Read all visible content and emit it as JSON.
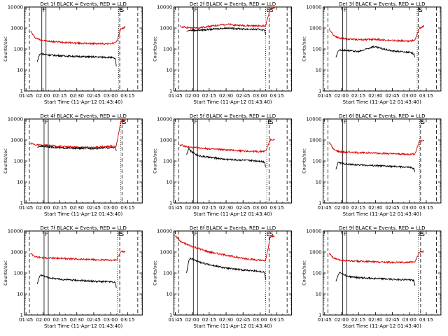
{
  "figure": {
    "background": "#ffffff",
    "axis_color": "#000000",
    "events_color": "#000000",
    "lld_color": "#dd0000"
  },
  "chart_data": [
    {
      "type": "line",
      "title": "Det 1f BLACK = Events, RED = LLD",
      "xlabel": "Start Time (11-Apr-12 01:43:40)",
      "ylabel": "Counts/sec",
      "xlim": [
        "01:43:40",
        "03:28:00"
      ],
      "ylim": [
        1,
        10000
      ],
      "yscale": "log",
      "x_ticks": [
        "01:45",
        "02:00",
        "02:15",
        "02:30",
        "02:45",
        "03:00",
        "03:15"
      ],
      "y_ticks": [
        "1",
        "10",
        "100",
        "1000",
        "10000"
      ],
      "markers": [
        {
          "label": "E",
          "time": "03:07:00",
          "style": "dotted"
        },
        {
          "label": "F",
          "time": "01:59:00",
          "style": "solid"
        },
        {
          "label": "S",
          "time": "03:08:00",
          "style": "dashed"
        }
      ],
      "extra_lines": [
        {
          "time": "01:48:00",
          "style": "dashed"
        },
        {
          "time": "03:24:00",
          "style": "dashed"
        }
      ],
      "series": [
        {
          "color": "#dd0000",
          "x": [
            "01:49:00",
            "01:53:00",
            "01:58:00",
            "02:05:00",
            "02:15:00",
            "02:30:00",
            "02:45:00",
            "03:00:00",
            "03:05:00",
            "03:09:00",
            "03:13:00"
          ],
          "y": [
            700,
            350,
            270,
            230,
            215,
            190,
            180,
            180,
            200,
            900,
            1100
          ]
        },
        {
          "color": "#000000",
          "x": [
            "01:55:00",
            "01:57:00",
            "01:58:30",
            "02:05:00",
            "02:15:00",
            "02:30:00",
            "02:45:00",
            "03:00:00",
            "03:04:00",
            "03:05:00"
          ],
          "y": [
            25,
            55,
            60,
            52,
            48,
            44,
            42,
            40,
            35,
            15
          ]
        }
      ]
    },
    {
      "type": "line",
      "title": "Det 2f BLACK = Events, RED = LLD",
      "xlabel": "Start Time (11-Apr-12 01:43:40)",
      "ylabel": "Counts/sec",
      "xlim": [
        "01:43:40",
        "03:28:00"
      ],
      "ylim": [
        1,
        10000
      ],
      "yscale": "log",
      "x_ticks": [
        "01:45",
        "02:00",
        "02:15",
        "02:30",
        "02:45",
        "03:00",
        "03:15"
      ],
      "y_ticks": [
        "1",
        "10",
        "100",
        "1000",
        "10000"
      ],
      "markers": [
        {
          "label": "E",
          "time": "03:05:00",
          "style": "dotted"
        },
        {
          "label": "F",
          "time": "02:01:00",
          "style": "solid"
        },
        {
          "label": "S",
          "time": "03:08:00",
          "style": "dashed"
        }
      ],
      "extra_lines": [
        {
          "time": "01:48:00",
          "style": "dashed"
        },
        {
          "time": "03:24:00",
          "style": "dashed"
        }
      ],
      "series": [
        {
          "color": "#dd0000",
          "x": [
            "01:49:00",
            "01:53:00",
            "01:58:00",
            "02:05:00",
            "02:15:00",
            "02:30:00",
            "02:45:00",
            "03:00:00",
            "03:05:00",
            "03:09:00",
            "03:13:00"
          ],
          "y": [
            1200,
            1100,
            1000,
            1000,
            1200,
            1500,
            1300,
            1250,
            1250,
            8000,
            9000
          ]
        },
        {
          "color": "#000000",
          "x": [
            "01:55:00",
            "01:57:00",
            "01:58:30",
            "02:05:00",
            "02:15:00",
            "02:30:00",
            "02:45:00",
            "03:00:00",
            "03:04:00",
            "03:05:00"
          ],
          "y": [
            700,
            750,
            780,
            780,
            850,
            1000,
            900,
            850,
            800,
            500
          ]
        }
      ]
    },
    {
      "type": "line",
      "title": "Det 3f BLACK = Events, RED = LLD",
      "xlabel": "Start Time (11-Apr-12 01:43:40)",
      "ylabel": "Counts/sec",
      "xlim": [
        "01:43:40",
        "03:28:00"
      ],
      "ylim": [
        1,
        10000
      ],
      "yscale": "log",
      "x_ticks": [
        "01:45",
        "02:00",
        "02:15",
        "02:30",
        "02:45",
        "03:00",
        "03:15"
      ],
      "y_ticks": [
        "1",
        "10",
        "100",
        "1000",
        "10000"
      ],
      "markers": [
        {
          "label": "E",
          "time": "03:07:00",
          "style": "dotted"
        },
        {
          "label": "F",
          "time": "02:01:00",
          "style": "solid"
        },
        {
          "label": "S",
          "time": "03:08:00",
          "style": "dashed"
        }
      ],
      "extra_lines": [
        {
          "time": "01:48:00",
          "style": "dashed"
        },
        {
          "time": "03:24:00",
          "style": "dashed"
        }
      ],
      "series": [
        {
          "color": "#dd0000",
          "x": [
            "01:49:00",
            "01:53:00",
            "01:58:00",
            "02:05:00",
            "02:15:00",
            "02:30:00",
            "02:45:00",
            "03:00:00",
            "03:05:00",
            "03:09:00",
            "03:13:00"
          ],
          "y": [
            900,
            450,
            330,
            300,
            280,
            290,
            250,
            240,
            260,
            1000,
            1200
          ]
        },
        {
          "color": "#000000",
          "x": [
            "01:55:00",
            "01:57:00",
            "01:58:30",
            "02:05:00",
            "02:15:00",
            "02:20:00",
            "02:28:00",
            "02:45:00",
            "03:00:00",
            "03:04:00",
            "03:05:00"
          ],
          "y": [
            40,
            80,
            90,
            85,
            75,
            90,
            130,
            80,
            70,
            60,
            40
          ]
        }
      ]
    },
    {
      "type": "line",
      "title": "Det 4f BLACK = Events, RED = LLD",
      "xlabel": "Start Time (11-Apr-12 01:43:40)",
      "ylabel": "Counts/sec",
      "xlim": [
        "01:43:40",
        "03:28:00"
      ],
      "ylim": [
        1,
        10000
      ],
      "yscale": "log",
      "x_ticks": [
        "01:45",
        "02:00",
        "02:15",
        "02:30",
        "02:45",
        "03:00",
        "03:15"
      ],
      "y_ticks": [
        "1",
        "10",
        "100",
        "1000",
        "10000"
      ],
      "markers": [
        {
          "label": "E",
          "time": "03:09:00",
          "style": "dotted"
        },
        {
          "label": "F",
          "time": "02:01:00",
          "style": "solid"
        },
        {
          "label": "S",
          "time": "03:10:00",
          "style": "dashed"
        }
      ],
      "extra_lines": [
        {
          "time": "01:48:00",
          "style": "dashed"
        },
        {
          "time": "03:24:00",
          "style": "dashed"
        }
      ],
      "series": [
        {
          "color": "#dd0000",
          "x": [
            "01:49:00",
            "01:53:00",
            "01:58:00",
            "02:05:00",
            "02:15:00",
            "02:30:00",
            "02:45:00",
            "03:00:00",
            "03:05:00",
            "03:09:00",
            "03:13:00"
          ],
          "y": [
            700,
            600,
            550,
            550,
            500,
            450,
            450,
            500,
            520,
            8000,
            9000
          ]
        },
        {
          "color": "#000000",
          "x": [
            "01:55:00",
            "01:57:00",
            "01:58:30",
            "02:05:00",
            "02:15:00",
            "02:30:00",
            "02:45:00",
            "03:00:00",
            "03:04:00",
            "03:05:00"
          ],
          "y": [
            450,
            480,
            500,
            480,
            420,
            400,
            400,
            430,
            450,
            300
          ]
        }
      ]
    },
    {
      "type": "line",
      "title": "Det 5f BLACK = Events, RED = LLD",
      "xlabel": "Start Time (11-Apr-12 01:43:40)",
      "ylabel": "Counts/sec",
      "xlim": [
        "01:43:40",
        "03:28:00"
      ],
      "ylim": [
        1,
        10000
      ],
      "yscale": "log",
      "x_ticks": [
        "01:45",
        "02:00",
        "02:15",
        "02:30",
        "02:45",
        "03:00",
        "03:15"
      ],
      "y_ticks": [
        "1",
        "10",
        "100",
        "1000",
        "10000"
      ],
      "markers": [
        {
          "label": "E",
          "time": "03:06:00",
          "style": "dotted"
        },
        {
          "label": "F",
          "time": "02:01:00",
          "style": "solid"
        },
        {
          "label": "S",
          "time": "03:08:00",
          "style": "dashed"
        }
      ],
      "extra_lines": [
        {
          "time": "01:48:00",
          "style": "dashed"
        },
        {
          "time": "03:24:00",
          "style": "dashed"
        }
      ],
      "series": [
        {
          "color": "#dd0000",
          "x": [
            "01:49:00",
            "01:53:00",
            "01:58:00",
            "02:05:00",
            "02:15:00",
            "02:30:00",
            "02:45:00",
            "03:00:00",
            "03:05:00",
            "03:09:00",
            "03:13:00"
          ],
          "y": [
            600,
            500,
            450,
            420,
            380,
            340,
            300,
            280,
            300,
            1000,
            1100
          ]
        },
        {
          "color": "#000000",
          "x": [
            "01:55:00",
            "01:57:00",
            "01:58:30",
            "02:05:00",
            "02:15:00",
            "02:30:00",
            "02:45:00",
            "03:00:00",
            "03:04:00",
            "03:05:00"
          ],
          "y": [
            200,
            400,
            300,
            180,
            150,
            120,
            110,
            100,
            90,
            50
          ]
        }
      ]
    },
    {
      "type": "line",
      "title": "Det 6f BLACK = Events, RED = LLD",
      "xlabel": "Start Time (11-Apr-12 01:43:40)",
      "ylabel": "Counts/sec",
      "xlim": [
        "01:43:40",
        "03:28:00"
      ],
      "ylim": [
        1,
        10000
      ],
      "yscale": "log",
      "x_ticks": [
        "01:45",
        "02:00",
        "02:15",
        "02:30",
        "02:45",
        "03:00",
        "03:15"
      ],
      "y_ticks": [
        "1",
        "10",
        "100",
        "1000",
        "10000"
      ],
      "markers": [
        {
          "label": "E",
          "time": "03:09:00",
          "style": "dotted"
        },
        {
          "label": "F",
          "time": "02:01:00",
          "style": "solid"
        },
        {
          "label": "S",
          "time": "03:10:00",
          "style": "dashed"
        }
      ],
      "extra_lines": [
        {
          "time": "01:48:00",
          "style": "dashed"
        },
        {
          "time": "03:24:00",
          "style": "dashed"
        }
      ],
      "series": [
        {
          "color": "#dd0000",
          "x": [
            "01:49:00",
            "01:53:00",
            "01:58:00",
            "02:05:00",
            "02:15:00",
            "02:30:00",
            "02:45:00",
            "03:00:00",
            "03:05:00",
            "03:09:00",
            "03:13:00"
          ],
          "y": [
            800,
            350,
            280,
            260,
            250,
            240,
            220,
            210,
            220,
            900,
            1000
          ]
        },
        {
          "color": "#000000",
          "x": [
            "01:55:00",
            "01:57:00",
            "01:58:30",
            "02:05:00",
            "02:15:00",
            "02:30:00",
            "02:45:00",
            "03:00:00",
            "03:04:00",
            "03:05:00"
          ],
          "y": [
            40,
            90,
            80,
            70,
            65,
            60,
            55,
            50,
            45,
            30
          ]
        }
      ]
    },
    {
      "type": "line",
      "title": "Det 7f BLACK = Events, RED = LLD",
      "xlabel": "Start Time (11-Apr-12 01:43:40)",
      "ylabel": "Counts/sec",
      "xlim": [
        "01:43:40",
        "03:28:00"
      ],
      "ylim": [
        1,
        10000
      ],
      "yscale": "log",
      "x_ticks": [
        "01:45",
        "02:00",
        "02:15",
        "02:30",
        "02:45",
        "03:00",
        "03:15"
      ],
      "y_ticks": [
        "1",
        "10",
        "100",
        "1000",
        "10000"
      ],
      "markers": [
        {
          "label": "E",
          "time": "03:06:00",
          "style": "dotted"
        },
        {
          "label": "F",
          "time": "02:01:00",
          "style": "solid"
        },
        {
          "label": "S",
          "time": "03:08:00",
          "style": "dashed"
        }
      ],
      "extra_lines": [
        {
          "time": "01:48:00",
          "style": "dashed"
        },
        {
          "time": "03:24:00",
          "style": "dashed"
        }
      ],
      "series": [
        {
          "color": "#dd0000",
          "x": [
            "01:49:00",
            "01:53:00",
            "01:58:00",
            "02:05:00",
            "02:15:00",
            "02:30:00",
            "02:45:00",
            "03:00:00",
            "03:05:00",
            "03:09:00",
            "03:13:00"
          ],
          "y": [
            900,
            600,
            550,
            520,
            500,
            460,
            430,
            400,
            420,
            1000,
            1100
          ]
        },
        {
          "color": "#000000",
          "x": [
            "01:55:00",
            "01:57:00",
            "01:58:30",
            "02:05:00",
            "02:15:00",
            "02:30:00",
            "02:45:00",
            "03:00:00",
            "03:04:00",
            "03:05:00"
          ],
          "y": [
            30,
            70,
            80,
            60,
            50,
            45,
            40,
            38,
            35,
            20
          ]
        }
      ]
    },
    {
      "type": "line",
      "title": "Det 8f BLACK = Events, RED = LLD",
      "xlabel": "Start Time (11-Apr-12 01:43:40)",
      "ylabel": "Counts/sec",
      "xlim": [
        "01:43:40",
        "03:28:00"
      ],
      "ylim": [
        1,
        10000
      ],
      "yscale": "log",
      "x_ticks": [
        "01:45",
        "02:00",
        "02:15",
        "02:30",
        "02:45",
        "03:00",
        "03:15"
      ],
      "y_ticks": [
        "1",
        "10",
        "100",
        "1000",
        "10000"
      ],
      "markers": [
        {
          "label": "E",
          "time": "03:05:00",
          "style": "dotted"
        },
        {
          "label": "F",
          "time": "02:01:00",
          "style": "solid"
        },
        {
          "label": "S",
          "time": "03:08:00",
          "style": "dashed"
        }
      ],
      "extra_lines": [
        {
          "time": "01:48:00",
          "style": "dashed"
        },
        {
          "time": "03:24:00",
          "style": "dashed"
        }
      ],
      "series": [
        {
          "color": "#dd0000",
          "x": [
            "01:45:00",
            "01:50:00",
            "01:58:00",
            "02:05:00",
            "02:15:00",
            "02:30:00",
            "02:45:00",
            "03:00:00",
            "03:05:00",
            "03:09:00",
            "03:13:00"
          ],
          "y": [
            6000,
            3000,
            2000,
            1500,
            1000,
            700,
            500,
            400,
            380,
            5000,
            6000
          ]
        },
        {
          "color": "#000000",
          "x": [
            "01:55:00",
            "01:57:00",
            "01:58:30",
            "02:05:00",
            "02:15:00",
            "02:30:00",
            "02:45:00",
            "03:00:00",
            "03:04:00",
            "03:05:00"
          ],
          "y": [
            100,
            400,
            500,
            350,
            250,
            170,
            140,
            120,
            110,
            50
          ]
        }
      ]
    },
    {
      "type": "line",
      "title": "Det 9f BLACK = Events, RED = LLD",
      "xlabel": "Start Time (11-Apr-12 01:43:40)",
      "ylabel": "Counts/sec",
      "xlim": [
        "01:43:40",
        "03:28:00"
      ],
      "ylim": [
        1,
        10000
      ],
      "yscale": "log",
      "x_ticks": [
        "01:45",
        "02:00",
        "02:15",
        "02:30",
        "02:45",
        "03:00",
        "03:15"
      ],
      "y_ticks": [
        "1",
        "10",
        "100",
        "1000",
        "10000"
      ],
      "markers": [
        {
          "label": "E",
          "time": "03:08:00",
          "style": "dotted"
        },
        {
          "label": "F",
          "time": "02:01:00",
          "style": "solid"
        },
        {
          "label": "S",
          "time": "03:10:00",
          "style": "dashed"
        }
      ],
      "extra_lines": [
        {
          "time": "01:48:00",
          "style": "dashed"
        },
        {
          "time": "03:24:00",
          "style": "dashed"
        }
      ],
      "series": [
        {
          "color": "#dd0000",
          "x": [
            "01:49:00",
            "01:53:00",
            "01:58:00",
            "02:05:00",
            "02:15:00",
            "02:30:00",
            "02:45:00",
            "03:00:00",
            "03:05:00",
            "03:09:00",
            "03:13:00"
          ],
          "y": [
            900,
            500,
            420,
            380,
            360,
            340,
            320,
            320,
            330,
            1000,
            1100
          ]
        },
        {
          "color": "#000000",
          "x": [
            "01:55:00",
            "01:57:00",
            "01:58:30",
            "02:05:00",
            "02:15:00",
            "02:30:00",
            "02:45:00",
            "03:00:00",
            "03:04:00",
            "03:05:00"
          ],
          "y": [
            40,
            80,
            110,
            70,
            60,
            55,
            50,
            48,
            45,
            25
          ]
        }
      ]
    }
  ]
}
